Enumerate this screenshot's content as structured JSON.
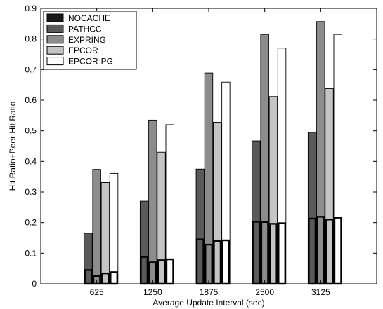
{
  "chart_data": {
    "type": "bar",
    "title": "",
    "xlabel": "Average Update Interval (sec)",
    "ylabel": "Hit Ratio+Peer Hit Ratio",
    "categories": [
      "625",
      "1250",
      "1875",
      "2500",
      "3125"
    ],
    "ylim": [
      0,
      0.9
    ],
    "yticks": [
      "0",
      "0.1",
      "0.2",
      "0.3",
      "0.4",
      "0.5",
      "0.6",
      "0.7",
      "0.8",
      "0.9"
    ],
    "grid": false,
    "legend_position": "top-left",
    "series": [
      {
        "name": "NOCACHE",
        "color": "#1a1a1a",
        "values": [
          0,
          0,
          0,
          0,
          0
        ]
      },
      {
        "name": "PATHCC",
        "color": "#5a5a5a",
        "values": [
          0.165,
          0.27,
          0.375,
          0.467,
          0.495
        ]
      },
      {
        "name": "EXPRING",
        "color": "#8c8c8c",
        "values": [
          0.374,
          0.535,
          0.689,
          0.815,
          0.857
        ]
      },
      {
        "name": "EPCOR",
        "color": "#c4c4c4",
        "values": [
          0.331,
          0.43,
          0.528,
          0.612,
          0.638
        ]
      },
      {
        "name": "EPCOR-PG",
        "color": "#ffffff",
        "values": [
          0.361,
          0.52,
          0.659,
          0.77,
          0.815
        ]
      }
    ],
    "peer_hit_series": [
      {
        "name": "PATHCC",
        "values": [
          0.045,
          0.088,
          0.145,
          0.203,
          0.213
        ]
      },
      {
        "name": "EXPRING",
        "values": [
          0.025,
          0.07,
          0.128,
          0.202,
          0.219
        ]
      },
      {
        "name": "EPCOR",
        "values": [
          0.034,
          0.077,
          0.14,
          0.196,
          0.21
        ]
      },
      {
        "name": "EPCOR-PG",
        "values": [
          0.038,
          0.08,
          0.142,
          0.198,
          0.216
        ]
      }
    ]
  }
}
